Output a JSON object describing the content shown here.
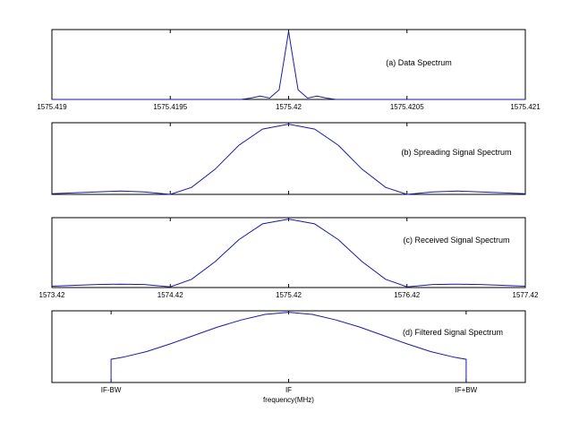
{
  "chart_data": [
    {
      "type": "line",
      "title": "(a) Data Spectrum",
      "xlabel": "",
      "ylabel": "",
      "xlim": [
        1575.419,
        1575.421
      ],
      "ylim": [
        0,
        1
      ],
      "grid": false,
      "tick_labels": [
        "1575.419",
        "1575.4195",
        "1575.42",
        "1575.4205",
        "1575.421"
      ],
      "series": [
        {
          "x": [
            1575.419,
            1575.4198,
            1575.41984,
            1575.41988,
            1575.41992,
            1575.41996,
            1575.41999,
            1575.42,
            1575.42001,
            1575.42004,
            1575.42008,
            1575.42012,
            1575.42016,
            1575.4202,
            1575.421
          ],
          "y": [
            0,
            0,
            0.02,
            0.05,
            0.02,
            0.14,
            0.78,
            1.0,
            0.78,
            0.14,
            0.02,
            0.05,
            0.02,
            0,
            0
          ]
        }
      ]
    },
    {
      "type": "line",
      "title": "(b) Spreading Signal Spectrum",
      "xlabel": "",
      "ylabel": "",
      "xlim": [
        1573.42,
        1577.42
      ],
      "ylim": [
        0,
        1
      ],
      "grid": false,
      "tick_labels": [],
      "series": [
        {
          "x": [
            1573.42,
            1573.8,
            1574.0,
            1574.2,
            1574.42,
            1574.6,
            1574.8,
            1575.0,
            1575.2,
            1575.42,
            1575.64,
            1575.84,
            1576.04,
            1576.24,
            1576.42,
            1576.64,
            1576.84,
            1577.04,
            1577.42
          ],
          "y": [
            0.01,
            0.035,
            0.047,
            0.035,
            0.0,
            0.1,
            0.36,
            0.7,
            0.93,
            1.0,
            0.93,
            0.7,
            0.36,
            0.1,
            0.0,
            0.035,
            0.047,
            0.035,
            0.01
          ]
        }
      ]
    },
    {
      "type": "line",
      "title": "(c) Received Signal Spectrum",
      "xlabel": "",
      "ylabel": "",
      "xlim": [
        1573.42,
        1577.42
      ],
      "ylim": [
        0,
        1
      ],
      "grid": false,
      "tick_labels": [
        "1573.42",
        "1574.42",
        "1575.42",
        "1576.42",
        "1577.42"
      ],
      "series": [
        {
          "x": [
            1573.42,
            1573.8,
            1574.0,
            1574.2,
            1574.42,
            1574.6,
            1574.8,
            1575.0,
            1575.2,
            1575.42,
            1575.64,
            1575.84,
            1576.04,
            1576.24,
            1576.42,
            1576.64,
            1576.84,
            1577.04,
            1577.42
          ],
          "y": [
            0.02,
            0.045,
            0.05,
            0.045,
            0.01,
            0.12,
            0.38,
            0.7,
            0.93,
            1.0,
            0.93,
            0.7,
            0.38,
            0.12,
            0.01,
            0.045,
            0.05,
            0.045,
            0.02
          ]
        }
      ]
    },
    {
      "type": "line",
      "title": "(d) Filtered Signal Spectrum",
      "xlabel": "frequency(MHz)",
      "ylabel": "",
      "xlim": [
        -1,
        1
      ],
      "ylim": [
        0,
        1
      ],
      "grid": false,
      "tick_labels": [
        "IF-BW",
        "IF",
        "IF+BW"
      ],
      "tick_positions": [
        -0.75,
        0,
        0.75
      ],
      "series": [
        {
          "x": [
            -0.75,
            -0.75,
            -0.7,
            -0.6,
            -0.5,
            -0.4,
            -0.3,
            -0.2,
            -0.1,
            0,
            0.1,
            0.2,
            0.3,
            0.4,
            0.5,
            0.6,
            0.7,
            0.75,
            0.75
          ],
          "y": [
            0,
            0.33,
            0.36,
            0.44,
            0.55,
            0.67,
            0.79,
            0.89,
            0.97,
            1.0,
            0.97,
            0.89,
            0.79,
            0.67,
            0.55,
            0.44,
            0.36,
            0.33,
            0
          ]
        }
      ]
    }
  ]
}
